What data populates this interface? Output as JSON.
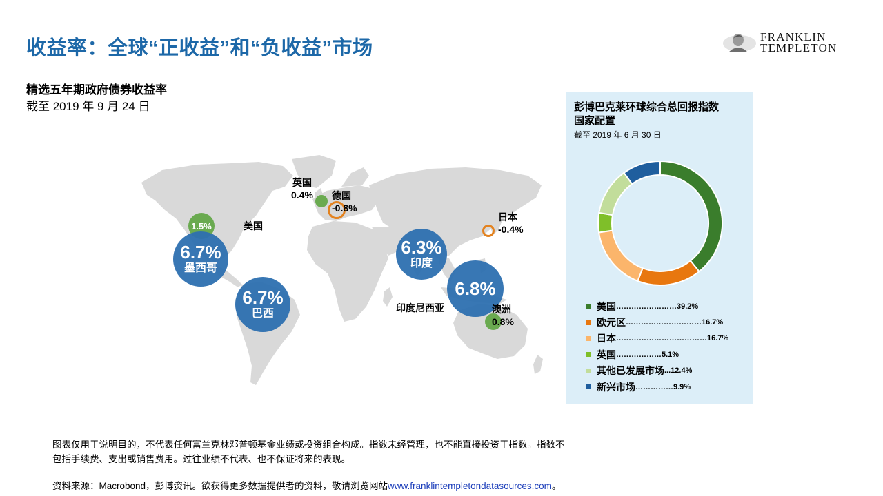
{
  "header": {
    "title": "收益率：全球“正收益”和“负收益”市场",
    "logo_line1": "FRANKLIN",
    "logo_line2": "TEMPLETON"
  },
  "map_section": {
    "subtitle": "精选五年期政府债券收益率",
    "as_of": "截至 2019 年 9 月 24 日",
    "markers": {
      "usa": {
        "label": "美国",
        "value": "1.5%"
      },
      "mexico": {
        "label": "墨西哥",
        "value": "6.7%"
      },
      "brazil": {
        "label": "巴西",
        "value": "6.7%"
      },
      "uk": {
        "label": "英国",
        "value": "0.4%"
      },
      "germany": {
        "label": "德国",
        "value": "-0.8%"
      },
      "india": {
        "label": "印度",
        "value": "6.3%"
      },
      "indonesia": {
        "label": "印度尼西亚",
        "value": "6.8%"
      },
      "japan": {
        "label": "日本",
        "value": "-0.4%"
      },
      "australia": {
        "label": "澳洲",
        "value": "0.8%"
      }
    },
    "colors": {
      "high_yield": "#2e70b0",
      "positive": "#6aaa50",
      "negative": "#e3821f",
      "land": "#d9d9d9"
    }
  },
  "chart_data": {
    "type": "pie",
    "title": "彭博巴克莱环球综合总回报指数 国家配置",
    "subtitle": "截至 2019 年 6 月 30 日",
    "style": "donut",
    "categories": [
      "美国",
      "欧元区",
      "日本",
      "英国",
      "其他已发展市场",
      "新兴市场"
    ],
    "values": [
      39.2,
      16.7,
      16.7,
      5.1,
      12.4,
      9.9
    ],
    "colors": [
      "#3a7d2c",
      "#e8770f",
      "#fbb56b",
      "#7fbf29",
      "#c2dd9b",
      "#1f5e9e"
    ],
    "legend": [
      {
        "name": "美国",
        "dots": "……………………",
        "value": "39.2%"
      },
      {
        "name": "欧元区",
        "dots": "…………………………",
        "value": "16.7%"
      },
      {
        "name": "日本",
        "dots": "………………………………",
        "value": "16.7%"
      },
      {
        "name": "英国",
        "dots": "………………",
        "value": "5.1%"
      },
      {
        "name": "其他已发展市场",
        "dots": "... ",
        "value": "12.4%"
      },
      {
        "name": "新兴市场",
        "dots": "……………",
        "value": "9.9%"
      }
    ]
  },
  "panel": {
    "title_line1": "彭博巴克莱环球综合总回报指数",
    "title_line2": "国家配置",
    "as_of": "截至 2019 年 6 月 30 日"
  },
  "footer": {
    "note_line1": "图表仅用于说明目的，不代表任何富兰克林邓普顿基金业绩或投资组合构成。指数未经管理，也不能直接投资于指数。指数不",
    "note_line2": "包括手续费、支出或销售费用。过往业绩不代表、也不保证将来的表现。",
    "source_prefix": "资料来源：Macrobond，彭博资讯。欲获得更多数据提供者的资料，敬请浏览网站",
    "source_link": "www.franklintempletondatasources.com",
    "source_suffix": "。"
  }
}
